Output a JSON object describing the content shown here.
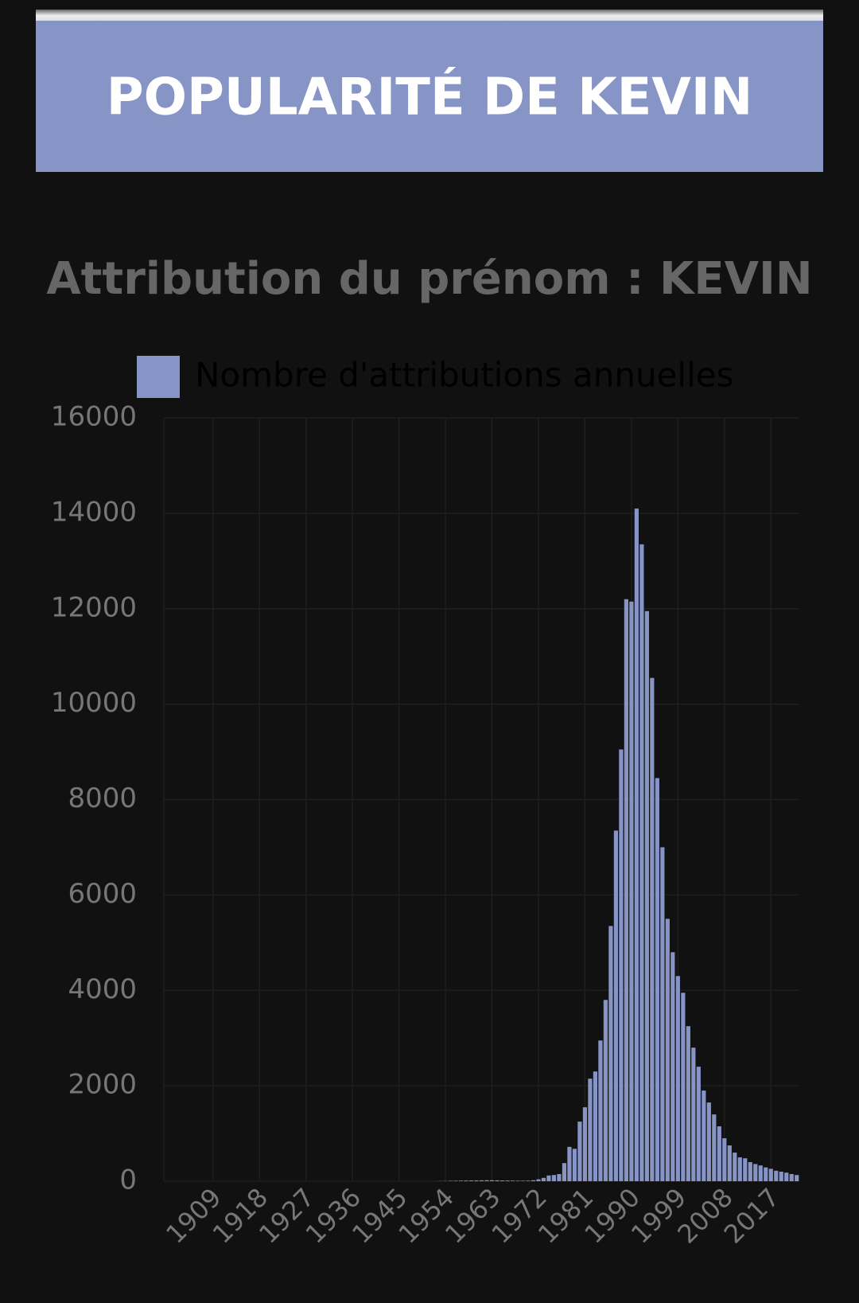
{
  "header": {
    "title": "POPULARITÉ DE KEVIN"
  },
  "chart_data": {
    "type": "bar",
    "title": "Attribution du prénom : KEVIN",
    "categories": [
      null,
      null,
      null,
      null,
      null,
      null,
      null,
      null,
      null,
      "1909",
      null,
      null,
      null,
      null,
      null,
      null,
      null,
      null,
      "1918",
      null,
      null,
      null,
      null,
      null,
      null,
      null,
      null,
      "1927",
      null,
      null,
      null,
      null,
      null,
      null,
      null,
      null,
      "1936",
      null,
      null,
      null,
      null,
      null,
      null,
      null,
      null,
      "1945",
      null,
      null,
      null,
      null,
      null,
      null,
      null,
      null,
      "1954",
      null,
      null,
      null,
      null,
      null,
      null,
      null,
      null,
      "1963",
      null,
      null,
      null,
      null,
      null,
      null,
      null,
      null,
      "1972",
      null,
      null,
      null,
      null,
      null,
      null,
      null,
      null,
      "1981",
      null,
      null,
      null,
      null,
      null,
      null,
      null,
      null,
      "1990",
      null,
      null,
      null,
      null,
      null,
      null,
      null,
      null,
      "1999",
      null,
      null,
      null,
      null,
      null,
      null,
      null,
      null,
      "2008",
      null,
      null,
      null,
      null,
      null,
      null,
      null,
      null,
      "2017",
      null,
      null,
      null,
      null,
      null
    ],
    "series": [
      {
        "name": "Nombre d'attributions annuelles",
        "color": "#8794c6",
        "values": [
          0,
          0,
          0,
          0,
          0,
          0,
          0,
          0,
          0,
          0,
          0,
          0,
          0,
          0,
          0,
          0,
          0,
          0,
          0,
          0,
          0,
          0,
          0,
          0,
          0,
          0,
          0,
          0,
          0,
          0,
          0,
          0,
          0,
          0,
          0,
          0,
          0,
          0,
          0,
          0,
          0,
          0,
          0,
          0,
          0,
          0,
          0,
          0,
          0,
          0,
          0,
          0,
          0,
          3,
          5,
          8,
          10,
          12,
          14,
          15,
          16,
          18,
          20,
          20,
          18,
          16,
          14,
          12,
          10,
          10,
          12,
          20,
          40,
          70,
          120,
          130,
          150,
          380,
          720,
          680,
          1250,
          1550,
          2150,
          2300,
          2950,
          3800,
          5350,
          7350,
          9050,
          12200,
          12150,
          14100,
          13350,
          11950,
          10550,
          8450,
          7000,
          5500,
          4800,
          4300,
          3950,
          3250,
          2800,
          2400,
          1900,
          1650,
          1400,
          1150,
          900,
          750,
          600,
          500,
          480,
          400,
          360,
          330,
          290,
          260,
          220,
          200,
          180,
          150,
          130
        ]
      }
    ],
    "ylim": [
      0,
      16000
    ],
    "yticks": [
      0,
      2000,
      4000,
      6000,
      8000,
      10000,
      12000,
      14000,
      16000
    ],
    "grid": true
  }
}
